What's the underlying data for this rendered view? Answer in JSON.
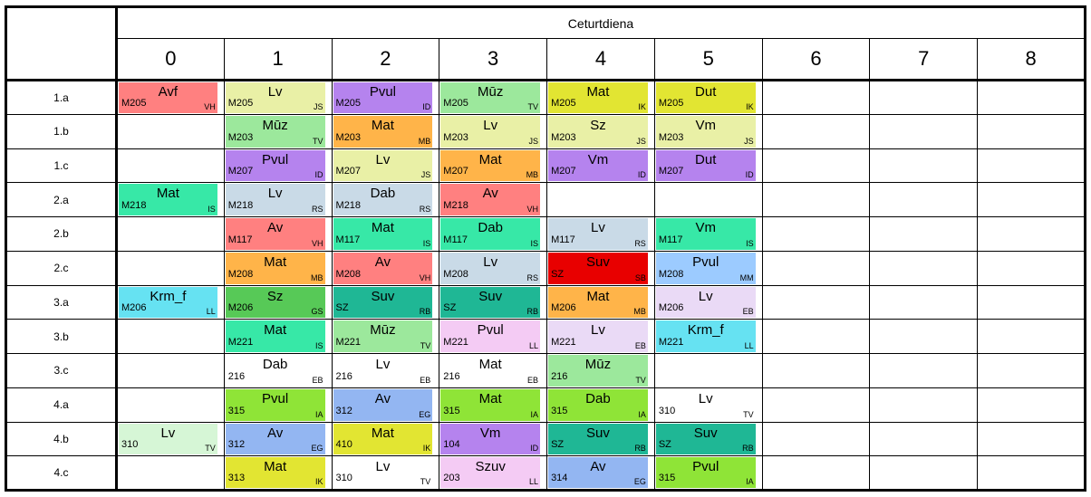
{
  "header": {
    "day": "Ceturtdiena",
    "periods": [
      "0",
      "1",
      "2",
      "3",
      "4",
      "5",
      "6",
      "7",
      "8"
    ]
  },
  "palette": {
    "salmon": "#FF8080",
    "pale_yellow_green": "#E9F0A6",
    "purple": "#B583EE",
    "light_green": "#9CE89C",
    "yellow": "#E2E532",
    "orange": "#FFB449",
    "spring_green": "#37E8A7",
    "blue_gray": "#C9DAE7",
    "red": "#E80000",
    "light_blue": "#9CCBFF",
    "cyan": "#66E2F2",
    "mid_green": "#57C957",
    "teal": "#1FB795",
    "pale_lavender": "#EADAF6",
    "pale_pink": "#F4CBF4",
    "bright_green": "#8FE437",
    "periwinkle": "#93B6F2",
    "pale_green": "#D6F6D6",
    "white": "#FFFFFF"
  },
  "rows": [
    {
      "label": "1.a",
      "cells": [
        {
          "room": "M205",
          "subject": "Avf",
          "teacher": "VH",
          "color": "#FF8080"
        },
        {
          "room": "M205",
          "subject": "Lv",
          "teacher": "JS",
          "color": "#E9F0A6"
        },
        {
          "room": "M205",
          "subject": "Pvul",
          "teacher": "ID",
          "color": "#B583EE"
        },
        {
          "room": "M205",
          "subject": "Mūz",
          "teacher": "TV",
          "color": "#9CE89C"
        },
        {
          "room": "M205",
          "subject": "Mat",
          "teacher": "IK",
          "color": "#E2E532"
        },
        {
          "room": "M205",
          "subject": "Dut",
          "teacher": "IK",
          "color": "#E2E532"
        },
        null,
        null,
        null
      ]
    },
    {
      "label": "1.b",
      "cells": [
        null,
        {
          "room": "M203",
          "subject": "Mūz",
          "teacher": "TV",
          "color": "#9CE89C"
        },
        {
          "room": "M203",
          "subject": "Mat",
          "teacher": "MB",
          "color": "#FFB449"
        },
        {
          "room": "M203",
          "subject": "Lv",
          "teacher": "JS",
          "color": "#E9F0A6"
        },
        {
          "room": "M203",
          "subject": "Sz",
          "teacher": "JS",
          "color": "#E9F0A6"
        },
        {
          "room": "M203",
          "subject": "Vm",
          "teacher": "JS",
          "color": "#E9F0A6"
        },
        null,
        null,
        null
      ]
    },
    {
      "label": "1.c",
      "cells": [
        null,
        {
          "room": "M207",
          "subject": "Pvul",
          "teacher": "ID",
          "color": "#B583EE"
        },
        {
          "room": "M207",
          "subject": "Lv",
          "teacher": "JS",
          "color": "#E9F0A6"
        },
        {
          "room": "M207",
          "subject": "Mat",
          "teacher": "MB",
          "color": "#FFB449"
        },
        {
          "room": "M207",
          "subject": "Vm",
          "teacher": "ID",
          "color": "#B583EE"
        },
        {
          "room": "M207",
          "subject": "Dut",
          "teacher": "ID",
          "color": "#B583EE"
        },
        null,
        null,
        null
      ]
    },
    {
      "label": "2.a",
      "cells": [
        {
          "room": "M218",
          "subject": "Mat",
          "teacher": "IS",
          "color": "#37E8A7"
        },
        {
          "room": "M218",
          "subject": "Lv",
          "teacher": "RS",
          "color": "#C9DAE7"
        },
        {
          "room": "M218",
          "subject": "Dab",
          "teacher": "RS",
          "color": "#C9DAE7"
        },
        {
          "room": "M218",
          "subject": "Av",
          "teacher": "VH",
          "color": "#FF8080"
        },
        null,
        null,
        null,
        null,
        null
      ]
    },
    {
      "label": "2.b",
      "cells": [
        null,
        {
          "room": "M117",
          "subject": "Av",
          "teacher": "VH",
          "color": "#FF8080"
        },
        {
          "room": "M117",
          "subject": "Mat",
          "teacher": "IS",
          "color": "#37E8A7"
        },
        {
          "room": "M117",
          "subject": "Dab",
          "teacher": "IS",
          "color": "#37E8A7"
        },
        {
          "room": "M117",
          "subject": "Lv",
          "teacher": "RS",
          "color": "#C9DAE7"
        },
        {
          "room": "M117",
          "subject": "Vm",
          "teacher": "IS",
          "color": "#37E8A7"
        },
        null,
        null,
        null
      ]
    },
    {
      "label": "2.c",
      "cells": [
        null,
        {
          "room": "M208",
          "subject": "Mat",
          "teacher": "MB",
          "color": "#FFB449"
        },
        {
          "room": "M208",
          "subject": "Av",
          "teacher": "VH",
          "color": "#FF8080"
        },
        {
          "room": "M208",
          "subject": "Lv",
          "teacher": "RS",
          "color": "#C9DAE7"
        },
        {
          "room": "SZ",
          "subject": "Suv",
          "teacher": "SB",
          "color": "#E80000"
        },
        {
          "room": "M208",
          "subject": "Pvul",
          "teacher": "MM",
          "color": "#9CCBFF"
        },
        null,
        null,
        null
      ]
    },
    {
      "label": "3.a",
      "cells": [
        {
          "room": "M206",
          "subject": "Krm_f",
          "teacher": "LL",
          "color": "#66E2F2"
        },
        {
          "room": "M206",
          "subject": "Sz",
          "teacher": "GS",
          "color": "#57C957"
        },
        {
          "room": "SZ",
          "subject": "Suv",
          "teacher": "RB",
          "color": "#1FB795"
        },
        {
          "room": "SZ",
          "subject": "Suv",
          "teacher": "RB",
          "color": "#1FB795"
        },
        {
          "room": "M206",
          "subject": "Mat",
          "teacher": "MB",
          "color": "#FFB449"
        },
        {
          "room": "M206",
          "subject": "Lv",
          "teacher": "EB",
          "color": "#EADAF6"
        },
        null,
        null,
        null
      ]
    },
    {
      "label": "3.b",
      "cells": [
        null,
        {
          "room": "M221",
          "subject": "Mat",
          "teacher": "IS",
          "color": "#37E8A7"
        },
        {
          "room": "M221",
          "subject": "Mūz",
          "teacher": "TV",
          "color": "#9CE89C"
        },
        {
          "room": "M221",
          "subject": "Pvul",
          "teacher": "LL",
          "color": "#F4CBF4"
        },
        {
          "room": "M221",
          "subject": "Lv",
          "teacher": "EB",
          "color": "#EADAF6"
        },
        {
          "room": "M221",
          "subject": "Krm_f",
          "teacher": "LL",
          "color": "#66E2F2"
        },
        null,
        null,
        null
      ]
    },
    {
      "label": "3.c",
      "cells": [
        null,
        {
          "room": "216",
          "subject": "Dab",
          "teacher": "EB",
          "color": "#FFFFFF"
        },
        {
          "room": "216",
          "subject": "Lv",
          "teacher": "EB",
          "color": "#FFFFFF"
        },
        {
          "room": "216",
          "subject": "Mat",
          "teacher": "EB",
          "color": "#FFFFFF"
        },
        {
          "room": "216",
          "subject": "Mūz",
          "teacher": "TV",
          "color": "#9CE89C"
        },
        null,
        null,
        null,
        null
      ]
    },
    {
      "label": "4.a",
      "cells": [
        null,
        {
          "room": "315",
          "subject": "Pvul",
          "teacher": "IA",
          "color": "#8FE437"
        },
        {
          "room": "312",
          "subject": "Av",
          "teacher": "EG",
          "color": "#93B6F2"
        },
        {
          "room": "315",
          "subject": "Mat",
          "teacher": "IA",
          "color": "#8FE437"
        },
        {
          "room": "315",
          "subject": "Dab",
          "teacher": "IA",
          "color": "#8FE437"
        },
        {
          "room": "310",
          "subject": "Lv",
          "teacher": "TV",
          "color": "#FFFFFF"
        },
        null,
        null,
        null
      ]
    },
    {
      "label": "4.b",
      "cells": [
        {
          "room": "310",
          "subject": "Lv",
          "teacher": "TV",
          "color": "#D6F6D6"
        },
        {
          "room": "312",
          "subject": "Av",
          "teacher": "EG",
          "color": "#93B6F2"
        },
        {
          "room": "410",
          "subject": "Mat",
          "teacher": "IK",
          "color": "#E2E532"
        },
        {
          "room": "104",
          "subject": "Vm",
          "teacher": "ID",
          "color": "#B583EE"
        },
        {
          "room": "SZ",
          "subject": "Suv",
          "teacher": "RB",
          "color": "#1FB795"
        },
        {
          "room": "SZ",
          "subject": "Suv",
          "teacher": "RB",
          "color": "#1FB795"
        },
        null,
        null,
        null
      ]
    },
    {
      "label": "4.c",
      "cells": [
        null,
        {
          "room": "313",
          "subject": "Mat",
          "teacher": "IK",
          "color": "#E2E532"
        },
        {
          "room": "310",
          "subject": "Lv",
          "teacher": "TV",
          "color": "#FFFFFF"
        },
        {
          "room": "203",
          "subject": "Szuv",
          "teacher": "LL",
          "color": "#F4CBF4"
        },
        {
          "room": "314",
          "subject": "Av",
          "teacher": "EG",
          "color": "#93B6F2"
        },
        {
          "room": "315",
          "subject": "Pvul",
          "teacher": "IA",
          "color": "#8FE437"
        },
        null,
        null,
        null
      ]
    }
  ]
}
